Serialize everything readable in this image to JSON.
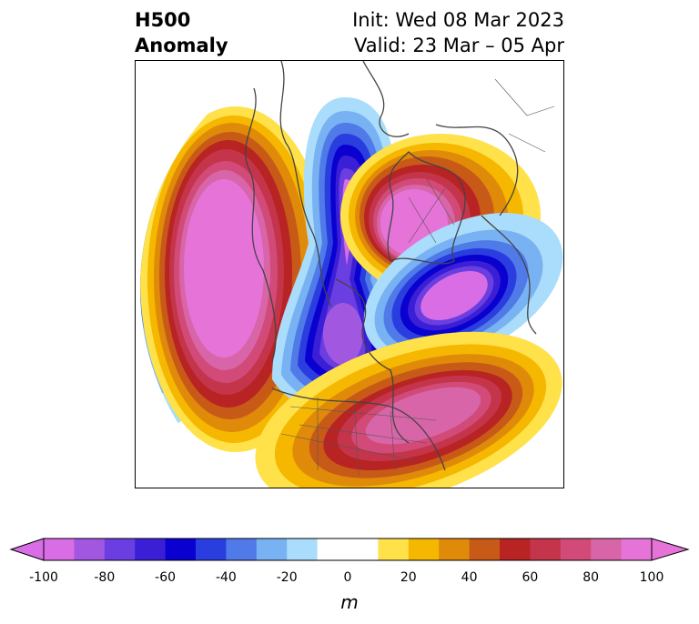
{
  "title": {
    "left_line1": "H500",
    "left_line2": "Anomaly",
    "right_line1": "Init: Wed 08 Mar 2023",
    "right_line2": "Valid: 23 Mar – 05 Apr"
  },
  "colorbar": {
    "unit": "m",
    "tick_labels": [
      "-100",
      "-80",
      "-60",
      "-40",
      "-20",
      "0",
      "20",
      "40",
      "60",
      "80",
      "100"
    ],
    "colors": [
      "#d86de6",
      "#a257e0",
      "#6a3ee0",
      "#3a1fd6",
      "#0a00cf",
      "#2a3ee0",
      "#4f7ae8",
      "#78b2f2",
      "#aadcfb",
      "#ffffff",
      "#ffffff",
      "#ffe14a",
      "#f5b700",
      "#e08a0a",
      "#c85a18",
      "#b82323",
      "#c4344b",
      "#d14a78",
      "#d865a8",
      "#e674d8"
    ],
    "under_color": "#d86de6",
    "over_color": "#e674d8"
  }
}
